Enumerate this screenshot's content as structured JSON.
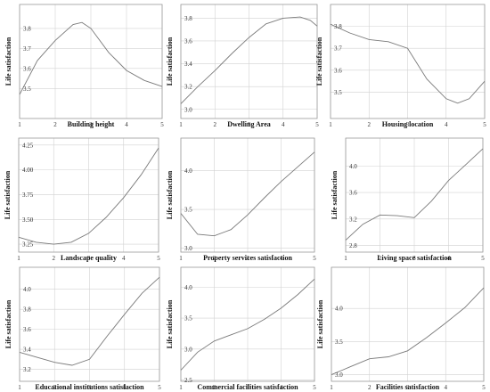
{
  "chart_data": [
    {
      "type": "line",
      "xlabel": "Building height",
      "ylabel": "Life satisfaction",
      "xlim": [
        1,
        5
      ],
      "ylim": [
        3.35,
        3.92
      ],
      "xticks": [
        1,
        2,
        3,
        4,
        5
      ],
      "yticks": [
        3.5,
        3.6,
        3.7,
        3.8
      ],
      "tick_labels_x": [
        "1",
        "2",
        "3",
        "4",
        "5"
      ],
      "tick_labels_y": [
        "3.5",
        "3.6",
        "3.7",
        "3.8"
      ],
      "grid": true,
      "series": [
        {
          "x": [
            1,
            1.5,
            2,
            2.5,
            2.75,
            3,
            3.5,
            4,
            4.5,
            5
          ],
          "values": [
            3.47,
            3.64,
            3.74,
            3.82,
            3.83,
            3.8,
            3.68,
            3.59,
            3.54,
            3.51
          ]
        }
      ]
    },
    {
      "type": "line",
      "xlabel": "Dwelling Area",
      "ylabel": "Life satisfaction",
      "xlim": [
        1,
        5
      ],
      "ylim": [
        2.92,
        3.92
      ],
      "xticks": [
        1,
        2,
        3,
        4,
        5
      ],
      "yticks": [
        3.0,
        3.2,
        3.4,
        3.6,
        3.8
      ],
      "tick_labels_x": [
        "1",
        "2",
        "3",
        "4",
        "5"
      ],
      "tick_labels_y": [
        "3.0",
        "3.2",
        "3.4",
        "3.6",
        "3.8"
      ],
      "grid": true,
      "series": [
        {
          "x": [
            1,
            1.5,
            2,
            2.5,
            3,
            3.5,
            4,
            4.5,
            4.8,
            5
          ],
          "values": [
            3.05,
            3.2,
            3.34,
            3.49,
            3.63,
            3.75,
            3.8,
            3.81,
            3.78,
            3.73
          ]
        }
      ]
    },
    {
      "type": "line",
      "xlabel": "Housing location",
      "ylabel": "Life satisfaction",
      "xlim": [
        1,
        5
      ],
      "ylim": [
        3.38,
        3.9
      ],
      "xticks": [
        1,
        2,
        3,
        4,
        5
      ],
      "yticks": [
        3.5,
        3.6,
        3.7,
        3.8
      ],
      "tick_labels_x": [
        "1",
        "2",
        "3",
        "4",
        "5"
      ],
      "tick_labels_y": [
        "3.5",
        "3.6",
        "3.7",
        "3.8"
      ],
      "grid": true,
      "series": [
        {
          "x": [
            1,
            1.5,
            2,
            2.5,
            3,
            3.5,
            4,
            4.3,
            4.6,
            5
          ],
          "values": [
            3.81,
            3.77,
            3.74,
            3.73,
            3.7,
            3.56,
            3.47,
            3.45,
            3.47,
            3.55
          ]
        }
      ]
    },
    {
      "type": "line",
      "xlabel": "Landscape quality",
      "ylabel": "Life satisfaction",
      "xlim": [
        1,
        5
      ],
      "ylim": [
        3.17,
        4.32
      ],
      "xticks": [
        1,
        2,
        3,
        4,
        5
      ],
      "yticks": [
        3.25,
        3.5,
        3.75,
        4.0,
        4.25
      ],
      "tick_labels_x": [
        "1",
        "2",
        "3",
        "4",
        "5"
      ],
      "tick_labels_y": [
        "3.25",
        "3.50",
        "3.75",
        "4.00",
        "4.25"
      ],
      "grid": true,
      "series": [
        {
          "x": [
            1,
            1.5,
            2,
            2.5,
            3,
            3.5,
            4,
            4.5,
            5
          ],
          "values": [
            3.32,
            3.27,
            3.25,
            3.27,
            3.36,
            3.52,
            3.72,
            3.95,
            4.22
          ]
        }
      ]
    },
    {
      "type": "line",
      "xlabel": "Property services satisfaction",
      "ylabel": "Life satisfaction",
      "xlim": [
        1,
        5
      ],
      "ylim": [
        2.95,
        4.42
      ],
      "xticks": [
        1,
        2,
        3,
        4,
        5
      ],
      "yticks": [
        3.0,
        3.5,
        4.0
      ],
      "tick_labels_x": [
        "1",
        "2",
        "3",
        "4",
        "5"
      ],
      "tick_labels_y": [
        "3.0",
        "3.5",
        "4.0"
      ],
      "grid": true,
      "series": [
        {
          "x": [
            1,
            1.5,
            2,
            2.5,
            3,
            3.5,
            4,
            4.5,
            5
          ],
          "values": [
            3.45,
            3.18,
            3.16,
            3.24,
            3.43,
            3.65,
            3.86,
            4.05,
            4.24
          ]
        }
      ]
    },
    {
      "type": "line",
      "xlabel": "Living space satisfaction",
      "ylabel": "Life satisfaction",
      "xlim": [
        1,
        5
      ],
      "ylim": [
        2.7,
        4.42
      ],
      "xticks": [
        1,
        2,
        3,
        4,
        5
      ],
      "yticks": [
        2.8,
        3.2,
        3.6,
        4.0
      ],
      "tick_labels_x": [
        "1",
        "2",
        "3",
        "4",
        "5"
      ],
      "tick_labels_y": [
        "2.8",
        "3.2",
        "3.6",
        "4.0"
      ],
      "grid": true,
      "series": [
        {
          "x": [
            1,
            1.5,
            2,
            2.5,
            3,
            3.5,
            4,
            4.5,
            5
          ],
          "values": [
            2.88,
            3.12,
            3.26,
            3.25,
            3.22,
            3.47,
            3.78,
            4.02,
            4.26
          ]
        }
      ]
    },
    {
      "type": "line",
      "xlabel": "Educational institutions satisfaction",
      "ylabel": "Life satisfaction",
      "xlim": [
        1,
        5
      ],
      "ylim": [
        3.08,
        4.22
      ],
      "xticks": [
        1,
        2,
        3,
        4,
        5
      ],
      "yticks": [
        3.2,
        3.4,
        3.6,
        3.8,
        4.0
      ],
      "tick_labels_x": [
        "1",
        "2",
        "3",
        "4",
        "5"
      ],
      "tick_labels_y": [
        "3.2",
        "3.4",
        "3.6",
        "3.8",
        "4.0"
      ],
      "grid": true,
      "series": [
        {
          "x": [
            1,
            1.5,
            2,
            2.5,
            3,
            3.5,
            4,
            4.5,
            5
          ],
          "values": [
            3.37,
            3.32,
            3.27,
            3.24,
            3.3,
            3.53,
            3.75,
            3.96,
            4.12
          ]
        }
      ]
    },
    {
      "type": "line",
      "xlabel": "Commercial facilities satisfaction",
      "ylabel": "Life satisfaction",
      "xlim": [
        1,
        5
      ],
      "ylim": [
        2.48,
        4.32
      ],
      "xticks": [
        1,
        2,
        3,
        4,
        5
      ],
      "yticks": [
        2.5,
        3.0,
        3.5,
        4.0
      ],
      "tick_labels_x": [
        "1",
        "2",
        "3",
        "4",
        "5"
      ],
      "tick_labels_y": [
        "2.5",
        "3.0",
        "3.5",
        "4.0"
      ],
      "grid": true,
      "series": [
        {
          "x": [
            1,
            1.5,
            2,
            2.5,
            3,
            3.5,
            4,
            4.5,
            5
          ],
          "values": [
            2.66,
            2.95,
            3.13,
            3.23,
            3.33,
            3.48,
            3.66,
            3.88,
            4.13
          ]
        }
      ]
    },
    {
      "type": "line",
      "xlabel": "Facilities satisfaction",
      "ylabel": "Life satisfaction",
      "xlim": [
        1,
        5
      ],
      "ylim": [
        2.9,
        4.62
      ],
      "xticks": [
        1,
        2,
        3,
        4,
        5
      ],
      "yticks": [
        3.0,
        3.5,
        4.0
      ],
      "tick_labels_x": [
        "1",
        "2",
        "3",
        "4",
        "5"
      ],
      "tick_labels_y": [
        "3.0",
        "3.5",
        "4.0"
      ],
      "grid": true,
      "series": [
        {
          "x": [
            1,
            1.5,
            2,
            2.5,
            3,
            3.5,
            4,
            4.5,
            5
          ],
          "values": [
            3.0,
            3.12,
            3.24,
            3.27,
            3.36,
            3.56,
            3.78,
            4.01,
            4.31
          ]
        }
      ]
    }
  ]
}
